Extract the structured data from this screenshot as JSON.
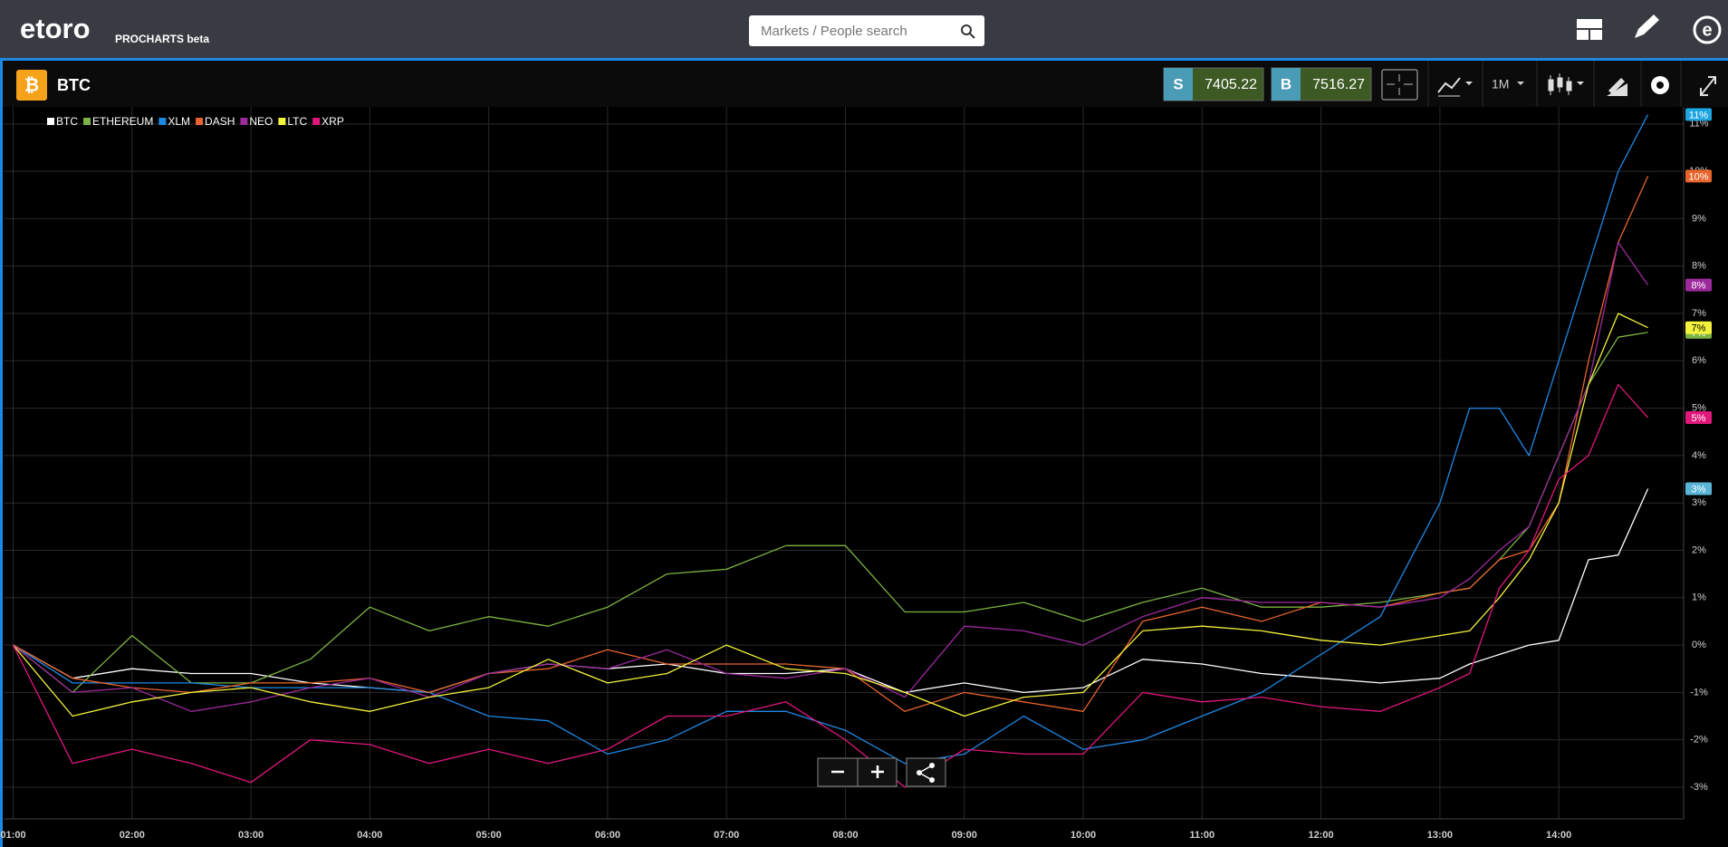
{
  "header": {
    "logo": "etoro",
    "product": "PROCHARTS beta",
    "search_placeholder": "Markets / People search"
  },
  "toolbar": {
    "symbol_icon": "₿",
    "instrument": "BTC",
    "sell_label": "S",
    "sell_price": 7405.22,
    "buy_label": "B",
    "buy_price": 7516.27,
    "timeframe": "1M"
  },
  "chart_data": {
    "type": "line",
    "x": [
      1,
      1.5,
      2,
      2.5,
      3,
      3.5,
      4,
      4.5,
      5,
      5.5,
      6,
      6.5,
      7,
      7.5,
      8,
      8.5,
      9,
      9.5,
      10,
      10.5,
      11,
      11.5,
      12,
      12.5,
      13,
      13.25,
      13.5,
      13.75,
      14,
      14.25,
      14.5,
      14.75
    ],
    "xlim": [
      0.92,
      15.05
    ],
    "xticks": [
      {
        "value": 1,
        "label": "01:00"
      },
      {
        "value": 2,
        "label": "02:00"
      },
      {
        "value": 3,
        "label": "03:00"
      },
      {
        "value": 4,
        "label": "04:00"
      },
      {
        "value": 5,
        "label": "05:00"
      },
      {
        "value": 6,
        "label": "06:00"
      },
      {
        "value": 7,
        "label": "07:00"
      },
      {
        "value": 8,
        "label": "08:00"
      },
      {
        "value": 9,
        "label": "09:00"
      },
      {
        "value": 10,
        "label": "10:00"
      },
      {
        "value": 11,
        "label": "11:00"
      },
      {
        "value": 12,
        "label": "12:00"
      },
      {
        "value": 13,
        "label": "13:00"
      },
      {
        "value": 14,
        "label": "14:00"
      }
    ],
    "ylim": [
      -3.67,
      11.36
    ],
    "yticks": [
      {
        "value": -3,
        "label": "-3%"
      },
      {
        "value": -2,
        "label": "-2%"
      },
      {
        "value": -1,
        "label": "-1%"
      },
      {
        "value": 0,
        "label": "0%"
      },
      {
        "value": 1,
        "label": "1%"
      },
      {
        "value": 2,
        "label": "2%"
      },
      {
        "value": 3,
        "label": "3%"
      },
      {
        "value": 4,
        "label": "4%"
      },
      {
        "value": 5,
        "label": "5%"
      },
      {
        "value": 6,
        "label": "6%"
      },
      {
        "value": 7,
        "label": "7%"
      },
      {
        "value": 8,
        "label": "8%"
      },
      {
        "value": 9,
        "label": "9%"
      },
      {
        "value": 10,
        "label": "10%"
      },
      {
        "value": 11,
        "label": "11%"
      }
    ],
    "grid": true,
    "legend": "top-left",
    "series": [
      {
        "name": "BTC",
        "color": "#ffffff",
        "label_color": "#5ab4d6",
        "end_label": "3%",
        "values": [
          0,
          -0.7,
          -0.5,
          -0.6,
          -0.6,
          -0.8,
          -0.9,
          -1.0,
          -0.6,
          -0.4,
          -0.5,
          -0.4,
          -0.6,
          -0.6,
          -0.5,
          -1.0,
          -0.8,
          -1.0,
          -0.9,
          -0.3,
          -0.4,
          -0.6,
          -0.7,
          -0.8,
          -0.7,
          -0.4,
          -0.2,
          0,
          0.1,
          1.8,
          1.9,
          3.3
        ]
      },
      {
        "name": "ETHEREUM",
        "color": "#7cb342",
        "label_color": "#7cb342",
        "end_label": "7%",
        "values": [
          0,
          -1.0,
          0.2,
          -0.8,
          -0.8,
          -0.3,
          0.8,
          0.3,
          0.6,
          0.4,
          0.8,
          1.5,
          1.6,
          2.1,
          2.1,
          0.7,
          0.7,
          0.9,
          0.5,
          0.9,
          1.2,
          0.8,
          0.8,
          0.9,
          1.1,
          1.2,
          1.8,
          2.5,
          4.0,
          5.5,
          6.5,
          6.6
        ]
      },
      {
        "name": "XLM",
        "color": "#1e88e5",
        "label_color": "#1ea5e0",
        "end_label": "11%",
        "values": [
          0,
          -0.8,
          -0.8,
          -0.8,
          -0.9,
          -0.9,
          -0.9,
          -1.0,
          -1.5,
          -1.6,
          -2.3,
          -2.0,
          -1.4,
          -1.4,
          -1.8,
          -2.5,
          -2.3,
          -1.5,
          -2.2,
          -2.0,
          -1.5,
          -1.0,
          -0.2,
          0.6,
          3.0,
          5.0,
          5.0,
          4.0,
          6.0,
          8.0,
          10.0,
          11.2
        ]
      },
      {
        "name": "DASH",
        "color": "#e8642c",
        "label_color": "#e8642c",
        "end_label": "10%",
        "values": [
          0,
          -0.7,
          -0.9,
          -1.0,
          -0.8,
          -0.8,
          -0.7,
          -1.0,
          -0.6,
          -0.5,
          -0.1,
          -0.4,
          -0.4,
          -0.4,
          -0.5,
          -1.4,
          -1.0,
          -1.2,
          -1.4,
          0.5,
          0.8,
          0.5,
          0.9,
          0.8,
          1.1,
          1.2,
          1.8,
          2.0,
          3.0,
          6.0,
          8.5,
          9.9
        ]
      },
      {
        "name": "NEO",
        "color": "#9c2a9c",
        "label_color": "#9c2a9c",
        "end_label": "8%",
        "values": [
          0,
          -1.0,
          -0.9,
          -1.4,
          -1.2,
          -0.9,
          -0.7,
          -1.1,
          -0.6,
          -0.4,
          -0.5,
          -0.1,
          -0.6,
          -0.7,
          -0.5,
          -1.1,
          0.4,
          0.3,
          0.0,
          0.6,
          1.0,
          0.9,
          0.9,
          0.8,
          1.0,
          1.4,
          2.0,
          2.5,
          4.0,
          5.5,
          8.5,
          7.6
        ]
      },
      {
        "name": "LTC",
        "color": "#f2f23c",
        "label_color": "#f2f23c",
        "end_label": "7%",
        "values": [
          0,
          -1.5,
          -1.2,
          -1.0,
          -0.9,
          -1.2,
          -1.4,
          -1.1,
          -0.9,
          -0.3,
          -0.8,
          -0.6,
          0.0,
          -0.5,
          -0.6,
          -1.0,
          -1.5,
          -1.1,
          -1.0,
          0.3,
          0.4,
          0.3,
          0.1,
          0.0,
          0.2,
          0.3,
          1.0,
          1.8,
          3.0,
          5.5,
          7.0,
          6.7
        ]
      },
      {
        "name": "XRP",
        "color": "#e0177a",
        "label_color": "#e0177a",
        "end_label": "5%",
        "values": [
          0,
          -2.5,
          -2.2,
          -2.5,
          -2.9,
          -2.0,
          -2.1,
          -2.5,
          -2.2,
          -2.5,
          -2.2,
          -1.5,
          -1.5,
          -1.2,
          -2.0,
          -3.0,
          -2.2,
          -2.3,
          -2.3,
          -1.0,
          -1.2,
          -1.1,
          -1.3,
          -1.4,
          -0.9,
          -0.6,
          1.2,
          2.0,
          3.5,
          4.0,
          5.5,
          4.8
        ]
      }
    ]
  }
}
